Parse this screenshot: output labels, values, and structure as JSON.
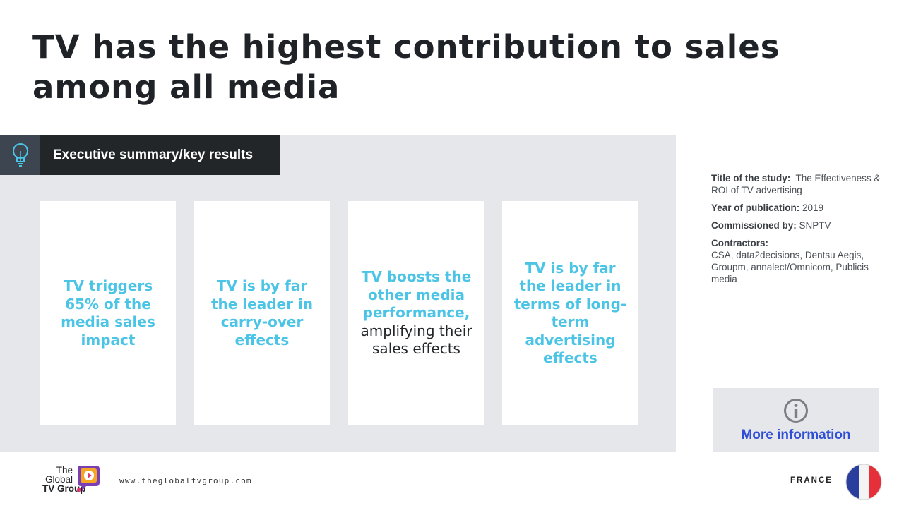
{
  "title_line1": "TV has the highest contribution to sales",
  "title_line2": "among all media",
  "exec": {
    "label": "Executive summary/key results",
    "icon": "lightbulb-icon"
  },
  "cards": [
    {
      "highlight": "TV triggers 65% of the media sales impact",
      "plain": ""
    },
    {
      "highlight": "TV is by far the leader in carry-over effects",
      "plain": ""
    },
    {
      "highlight": "TV boosts the other media performance,",
      "plain": "amplifying their sales effects"
    },
    {
      "highlight": "TV is by far the leader in terms of long-term advertising effects",
      "plain": ""
    }
  ],
  "meta": {
    "title_label": "Title of the study:",
    "title_value": "The Effectiveness & ROI of TV advertising",
    "year_label": "Year of publication:",
    "year_value": "2019",
    "commissioned_label": "Commissioned by:",
    "commissioned_value": "SNPTV",
    "contractors_label": "Contractors:",
    "contractors_value": "CSA, data2decisions, Dentsu Aegis, Groupm, annalect/Omnicom, Publicis media"
  },
  "more_info": {
    "icon": "info-icon",
    "label": "More information"
  },
  "footer": {
    "logo_line1": "The",
    "logo_line2": "Global",
    "logo_line3": "TV Group",
    "url": "www.theglobaltvgroup.com",
    "country": "FRANCE",
    "flag_icon": "france-flag-icon"
  },
  "colors": {
    "accent_blue": "#4cc4e6",
    "dark": "#222629",
    "panel_grey": "#e6e7ea",
    "link_blue": "#2f4fd6"
  }
}
